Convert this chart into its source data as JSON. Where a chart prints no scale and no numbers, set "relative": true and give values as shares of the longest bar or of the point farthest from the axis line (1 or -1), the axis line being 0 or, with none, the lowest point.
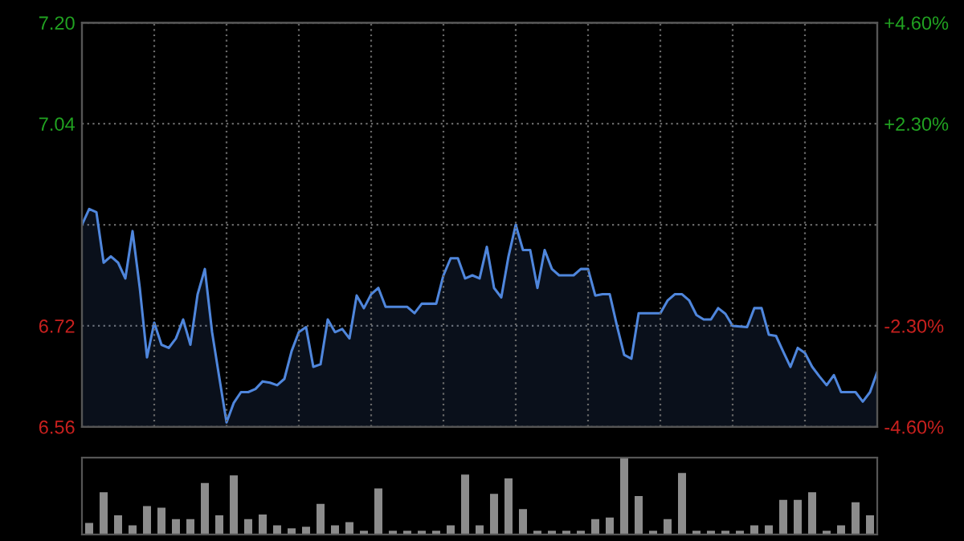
{
  "chart_data": [
    {
      "type": "area",
      "categories": [
        null,
        null,
        null,
        null,
        null,
        null,
        null,
        null,
        null,
        null,
        null,
        null,
        null,
        null,
        null,
        null,
        null,
        null,
        null,
        null,
        null,
        null,
        null,
        null,
        null,
        null,
        null,
        null,
        null,
        null,
        null,
        null,
        null,
        null,
        null,
        null,
        null,
        null,
        null,
        null,
        null,
        null,
        null,
        null,
        null,
        null,
        null,
        null,
        null,
        null,
        null,
        null,
        null,
        null,
        null,
        null,
        null,
        null,
        null,
        null,
        null,
        null,
        null,
        null,
        null,
        null,
        null,
        null,
        null,
        null,
        null,
        null,
        null,
        null,
        null,
        null,
        null,
        null,
        null,
        null,
        null,
        null,
        null,
        null,
        null,
        null,
        null,
        null,
        null,
        null,
        null,
        null,
        null,
        null,
        null,
        null,
        null,
        null,
        null,
        null,
        null,
        null,
        null,
        null,
        null,
        null,
        null,
        null,
        null,
        null,
        null
      ],
      "ylim": [
        6.56,
        7.2
      ],
      "yticks": [
        {
          "value": 6.56,
          "label": "6.56"
        },
        {
          "value": 6.72,
          "label": "6.72"
        },
        {
          "value": 6.88,
          "label": null
        },
        {
          "value": 7.04,
          "label": "7.04"
        },
        {
          "value": 7.2,
          "label": "7.20"
        }
      ],
      "y2lim": [
        -4.6,
        4.6
      ],
      "y2ticks": [
        {
          "value": -4.6,
          "label": "-4.60%"
        },
        {
          "value": -2.3,
          "label": "-2.30%"
        },
        {
          "value": 0,
          "label": null
        },
        {
          "value": 2.3,
          "label": "+2.30%"
        },
        {
          "value": 4.6,
          "label": "+4.60%"
        }
      ],
      "grid": true,
      "line_style": "solid",
      "series": [
        {
          "color": "#4f86dc",
          "values": [
            6.88,
            6.905,
            6.9,
            6.82,
            6.83,
            6.82,
            6.795,
            6.87,
            6.78,
            6.67,
            6.725,
            6.69,
            6.685,
            6.7,
            6.73,
            6.69,
            6.77,
            6.81,
            6.71,
            6.638,
            6.567,
            6.598,
            6.615,
            6.615,
            6.62,
            6.632,
            6.63,
            6.626,
            6.636,
            6.68,
            6.71,
            6.718,
            6.655,
            6.659,
            6.73,
            6.71,
            6.715,
            6.7,
            6.768,
            6.748,
            6.77,
            6.78,
            6.75,
            6.75,
            6.75,
            6.75,
            6.74,
            6.755,
            6.755,
            6.755,
            6.8,
            6.827,
            6.827,
            6.795,
            6.8,
            6.795,
            6.845,
            6.78,
            6.765,
            6.83,
            6.88,
            6.84,
            6.84,
            6.78,
            6.84,
            6.81,
            6.8,
            6.8,
            6.8,
            6.81,
            6.81,
            6.768,
            6.77,
            6.77,
            6.72,
            6.674,
            6.668,
            6.74,
            6.74,
            6.74,
            6.74,
            6.76,
            6.77,
            6.77,
            6.76,
            6.737,
            6.73,
            6.73,
            6.748,
            6.739,
            6.72,
            6.719,
            6.718,
            6.748,
            6.748,
            6.706,
            6.704,
            6.679,
            6.655,
            6.685,
            6.677,
            6.655,
            6.64,
            6.626,
            6.642,
            6.615,
            6.615,
            6.615,
            6.6,
            6.615,
            6.647
          ]
        }
      ]
    },
    {
      "type": "bar",
      "relative": true,
      "categories": [
        null,
        null,
        null,
        null,
        null,
        null,
        null,
        null,
        null,
        null,
        null,
        null,
        null,
        null,
        null,
        null,
        null,
        null,
        null,
        null,
        null,
        null,
        null,
        null,
        null,
        null,
        null,
        null,
        null,
        null,
        null,
        null,
        null,
        null,
        null,
        null,
        null,
        null,
        null,
        null,
        null,
        null,
        null,
        null,
        null,
        null,
        null,
        null,
        null,
        null,
        null,
        null,
        null,
        null,
        null
      ],
      "color": "#8c8c8c",
      "values": [
        0.15,
        0.55,
        0.25,
        0.12,
        0.37,
        0.35,
        0.2,
        0.2,
        0.67,
        0.25,
        0.77,
        0.2,
        0.26,
        0.12,
        0.08,
        0.1,
        0.4,
        0.12,
        0.16,
        0.05,
        0.6,
        0.05,
        0.05,
        0.05,
        0.05,
        0.12,
        0.78,
        0.12,
        0.53,
        0.73,
        0.33,
        0.05,
        0.05,
        0.05,
        0.05,
        0.2,
        0.22,
        1.0,
        0.5,
        0.05,
        0.2,
        0.8,
        0.05,
        0.05,
        0.05,
        0.05,
        0.12,
        0.12,
        0.45,
        0.45,
        0.55,
        0.05,
        0.12,
        0.42,
        0.25
      ]
    }
  ]
}
